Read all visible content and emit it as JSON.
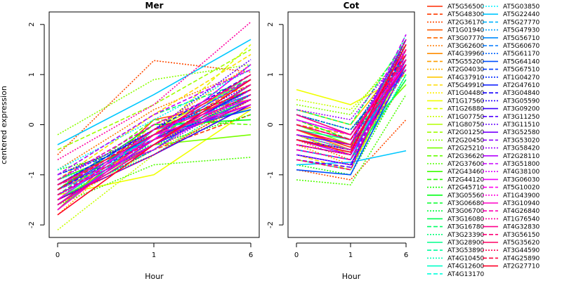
{
  "chart_data": {
    "type": "line",
    "ylabel": "centered expression",
    "xlabel": "Hour",
    "x_ticks": [
      "0",
      "1",
      "6"
    ],
    "y_ticks": [
      -2,
      -1,
      0,
      1,
      2
    ],
    "ylim": [
      -2.25,
      2.25
    ],
    "panels": [
      {
        "title": "Mer"
      },
      {
        "title": "Cot"
      }
    ],
    "legend_position": "right",
    "series": [
      {
        "name": "AT5G56500",
        "color": "#ff2a00",
        "dash": "solid",
        "mer": [
          -1.6,
          -0.2,
          0.7
        ],
        "cot": [
          -0.1,
          -0.45,
          1.4
        ]
      },
      {
        "name": "AT5G48300",
        "color": "#ff3a00",
        "dash": "dashed",
        "mer": [
          -1.2,
          -0.5,
          0.2
        ],
        "cot": [
          0.1,
          -0.3,
          1.2
        ]
      },
      {
        "name": "AT2G36170",
        "color": "#ff4a00",
        "dash": "dotted",
        "mer": [
          -0.6,
          1.28,
          1.05
        ],
        "cot": [
          -0.9,
          -1.1,
          0.1
        ]
      },
      {
        "name": "AT1G01940",
        "color": "#ff5a00",
        "dash": "solid",
        "mer": [
          -1.7,
          0.1,
          0.5
        ],
        "cot": [
          -0.2,
          -0.6,
          1.3
        ]
      },
      {
        "name": "AT3G07770",
        "color": "#ff6a00",
        "dash": "dashed",
        "mer": [
          -1.4,
          -0.3,
          0.9
        ],
        "cot": [
          0.2,
          -0.1,
          1.1
        ]
      },
      {
        "name": "AT3G62600",
        "color": "#ff7a00",
        "dash": "dotted",
        "mer": [
          -0.9,
          0.3,
          1.1
        ],
        "cot": [
          -0.3,
          -0.7,
          1.5
        ]
      },
      {
        "name": "AT4G39960",
        "color": "#ff8c00",
        "dash": "solid",
        "mer": [
          -1.2,
          -0.3,
          0.35
        ],
        "cot": [
          -0.1,
          -0.5,
          1.6
        ]
      },
      {
        "name": "AT5G55200",
        "color": "#ff9f00",
        "dash": "dashed",
        "mer": [
          -1.5,
          0.0,
          0.8
        ],
        "cot": [
          0.0,
          -0.2,
          1.3
        ]
      },
      {
        "name": "AT2G04030",
        "color": "#ffb400",
        "dash": "dotted",
        "mer": [
          -1.8,
          -0.1,
          1.2
        ],
        "cot": [
          -0.4,
          -0.8,
          0.9
        ]
      },
      {
        "name": "AT4G37910",
        "color": "#ffc800",
        "dash": "solid",
        "mer": [
          -1.3,
          -0.4,
          0.6
        ],
        "cot": [
          0.3,
          0.0,
          1.4
        ]
      },
      {
        "name": "AT5G49910",
        "color": "#ffdc00",
        "dash": "dashed",
        "mer": [
          -1.1,
          0.2,
          1.4
        ],
        "cot": [
          -0.6,
          -0.9,
          1.2
        ]
      },
      {
        "name": "AT1G04480",
        "color": "#fff000",
        "dash": "dotted",
        "mer": [
          -1.6,
          -0.5,
          0.4
        ],
        "cot": [
          0.1,
          -0.3,
          1.5
        ]
      },
      {
        "name": "AT1G17560",
        "color": "#f0ff00",
        "dash": "solid",
        "mer": [
          -1.4,
          -1.0,
          0.3
        ],
        "cot": [
          0.7,
          0.4,
          1.0
        ]
      },
      {
        "name": "AT1G26880",
        "color": "#dcff00",
        "dash": "dashed",
        "mer": [
          -1.0,
          -0.2,
          1.6
        ],
        "cot": [
          -0.2,
          -0.6,
          1.7
        ]
      },
      {
        "name": "AT1G07750",
        "color": "#c8ff00",
        "dash": "dotted",
        "mer": [
          -2.1,
          -0.6,
          0.5
        ],
        "cot": [
          0.5,
          0.3,
          1.4
        ]
      },
      {
        "name": "AT1G80750",
        "color": "#b4ff00",
        "dash": "solid",
        "mer": [
          -1.2,
          -0.1,
          0.9
        ],
        "cot": [
          -0.7,
          -0.9,
          1.3
        ]
      },
      {
        "name": "AT2G01250",
        "color": "#a0ff00",
        "dash": "dashed",
        "mer": [
          -0.5,
          0.4,
          1.5
        ],
        "cot": [
          -0.3,
          -0.5,
          1.1
        ]
      },
      {
        "name": "AT2G20450",
        "color": "#8cff00",
        "dash": "dotted",
        "mer": [
          -0.2,
          0.9,
          1.2
        ],
        "cot": [
          0.4,
          0.2,
          1.6
        ]
      },
      {
        "name": "AT2G25210",
        "color": "#78ff00",
        "dash": "solid",
        "mer": [
          -1.5,
          -0.4,
          -0.2
        ],
        "cot": [
          0.0,
          -0.4,
          0.8
        ]
      },
      {
        "name": "AT2G36620",
        "color": "#64ff00",
        "dash": "dashed",
        "mer": [
          -1.3,
          0.1,
          0.0
        ],
        "cot": [
          -0.5,
          -0.7,
          1.2
        ]
      },
      {
        "name": "AT2G37600",
        "color": "#50ff00",
        "dash": "dotted",
        "mer": [
          -1.6,
          -0.8,
          -0.65
        ],
        "cot": [
          -1.1,
          -1.2,
          0.6
        ]
      },
      {
        "name": "AT2G43460",
        "color": "#3cff00",
        "dash": "solid",
        "mer": [
          -1.1,
          -0.3,
          0.6
        ],
        "cot": [
          -0.4,
          -0.6,
          1.3
        ]
      },
      {
        "name": "AT2G44120",
        "color": "#28ff00",
        "dash": "dashed",
        "mer": [
          -1.4,
          -0.1,
          0.7
        ],
        "cot": [
          0.2,
          -0.2,
          1.5
        ]
      },
      {
        "name": "AT2G45710",
        "color": "#14ff00",
        "dash": "dotted",
        "mer": [
          -0.9,
          -0.4,
          0.2
        ],
        "cot": [
          -0.8,
          -1.0,
          1.0
        ]
      },
      {
        "name": "AT3G05560",
        "color": "#00ff14",
        "dash": "solid",
        "mer": [
          -1.3,
          0.0,
          0.1
        ],
        "cot": [
          -0.3,
          -0.5,
          1.4
        ]
      },
      {
        "name": "AT3G06680",
        "color": "#00ff28",
        "dash": "dashed",
        "mer": [
          -1.5,
          -0.5,
          0.8
        ],
        "cot": [
          0.1,
          -0.3,
          1.2
        ]
      },
      {
        "name": "AT3G06700",
        "color": "#00ff3c",
        "dash": "dotted",
        "mer": [
          -1.2,
          -0.2,
          0.4
        ],
        "cot": [
          -0.2,
          -0.4,
          1.6
        ]
      },
      {
        "name": "AT3G16080",
        "color": "#00ff50",
        "dash": "solid",
        "mer": [
          -1.6,
          -0.3,
          0.5
        ],
        "cot": [
          -0.5,
          -0.7,
          0.9
        ]
      },
      {
        "name": "AT3G16780",
        "color": "#00ff64",
        "dash": "dashed",
        "mer": [
          -1.0,
          0.2,
          0.9
        ],
        "cot": [
          0.3,
          0.0,
          1.7
        ]
      },
      {
        "name": "AT3G23390",
        "color": "#00ff78",
        "dash": "dotted",
        "mer": [
          -1.4,
          -0.6,
          0.6
        ],
        "cot": [
          -0.6,
          -0.8,
          1.1
        ]
      },
      {
        "name": "AT3G28900",
        "color": "#00ff8c",
        "dash": "solid",
        "mer": [
          -1.7,
          -0.1,
          0.3
        ],
        "cot": [
          -0.1,
          -0.3,
          1.5
        ]
      },
      {
        "name": "AT3G53890",
        "color": "#00ffa0",
        "dash": "dashed",
        "mer": [
          -1.2,
          -0.3,
          1.0
        ],
        "cot": [
          0.2,
          -0.1,
          1.3
        ]
      },
      {
        "name": "AT4G10450",
        "color": "#00ffb4",
        "dash": "dotted",
        "mer": [
          -1.1,
          -0.4,
          0.7
        ],
        "cot": [
          -0.4,
          -0.6,
          1.8
        ]
      },
      {
        "name": "AT4G12600",
        "color": "#00ffc8",
        "dash": "solid",
        "mer": [
          -1.5,
          -0.2,
          0.4
        ],
        "cot": [
          -0.2,
          -0.5,
          1.2
        ]
      },
      {
        "name": "AT4G13170",
        "color": "#00ffdc",
        "dash": "dashed",
        "mer": [
          -1.3,
          -0.5,
          0.8
        ],
        "cot": [
          0.0,
          -0.3,
          1.4
        ]
      },
      {
        "name": "AT5G03850",
        "color": "#00f0ff",
        "dash": "dotted",
        "mer": [
          -0.9,
          0.1,
          1.1
        ],
        "cot": [
          -0.7,
          -0.9,
          1.0
        ]
      },
      {
        "name": "AT5G22440",
        "color": "#00c8ff",
        "dash": "solid",
        "mer": [
          -0.4,
          0.6,
          1.7
        ],
        "cot": [
          -0.8,
          -0.75,
          -0.52
        ]
      },
      {
        "name": "AT5G27770",
        "color": "#00b4ff",
        "dash": "dashed",
        "mer": [
          -1.4,
          -0.2,
          0.9
        ],
        "cot": [
          -0.3,
          -0.5,
          1.6
        ]
      },
      {
        "name": "AT5G47930",
        "color": "#00a0ff",
        "dash": "dotted",
        "mer": [
          -1.6,
          -0.4,
          0.5
        ],
        "cot": [
          0.1,
          -0.2,
          1.3
        ]
      },
      {
        "name": "AT5G56710",
        "color": "#008cff",
        "dash": "solid",
        "mer": [
          -1.2,
          -0.1,
          0.6
        ],
        "cot": [
          -0.5,
          -0.7,
          1.5
        ]
      },
      {
        "name": "AT5G60670",
        "color": "#0078ff",
        "dash": "dashed",
        "mer": [
          -1.0,
          -0.3,
          1.2
        ],
        "cot": [
          -0.2,
          -0.4,
          1.1
        ]
      },
      {
        "name": "AT5G61170",
        "color": "#0064ff",
        "dash": "dotted",
        "mer": [
          -1.5,
          -0.5,
          0.8
        ],
        "cot": [
          0.0,
          -0.3,
          1.4
        ]
      },
      {
        "name": "AT5G64140",
        "color": "#0050ff",
        "dash": "solid",
        "mer": [
          -1.3,
          -0.2,
          0.3
        ],
        "cot": [
          -0.9,
          -1.0,
          1.2
        ]
      },
      {
        "name": "AT5G67510",
        "color": "#003cff",
        "dash": "dashed",
        "mer": [
          -1.1,
          0.0,
          0.9
        ],
        "cot": [
          -0.4,
          -0.6,
          1.7
        ]
      },
      {
        "name": "AT1G04270",
        "color": "#0028ff",
        "dash": "dotted",
        "mer": [
          -1.4,
          -0.4,
          0.6
        ],
        "cot": [
          0.2,
          -0.1,
          1.2
        ]
      },
      {
        "name": "AT2G47610",
        "color": "#0014ff",
        "dash": "solid",
        "mer": [
          -1.6,
          -0.3,
          0.7
        ],
        "cot": [
          -0.6,
          -0.8,
          1.3
        ]
      },
      {
        "name": "AT3G04840",
        "color": "#1400ff",
        "dash": "dashed",
        "mer": [
          -1.2,
          -0.1,
          1.0
        ],
        "cot": [
          -0.3,
          -0.5,
          1.5
        ]
      },
      {
        "name": "AT3G05590",
        "color": "#2800ff",
        "dash": "dotted",
        "mer": [
          -1.0,
          -0.2,
          0.8
        ],
        "cot": [
          0.1,
          -0.2,
          1.6
        ]
      },
      {
        "name": "AT3G09200",
        "color": "#3c00ff",
        "dash": "solid",
        "mer": [
          -1.5,
          -0.6,
          0.4
        ],
        "cot": [
          -0.4,
          -0.6,
          1.2
        ]
      },
      {
        "name": "AT3G11250",
        "color": "#5000ff",
        "dash": "dashed",
        "mer": [
          -1.3,
          -0.3,
          0.7
        ],
        "cot": [
          -0.7,
          -0.85,
          1.4
        ]
      },
      {
        "name": "AT3G11510",
        "color": "#6400ff",
        "dash": "dotted",
        "mer": [
          -1.1,
          -0.1,
          1.3
        ],
        "cot": [
          0.0,
          -0.3,
          1.1
        ]
      },
      {
        "name": "AT3G52580",
        "color": "#7800ff",
        "dash": "solid",
        "mer": [
          -1.4,
          -0.4,
          0.5
        ],
        "cot": [
          -0.2,
          -0.4,
          1.7
        ]
      },
      {
        "name": "AT3G53020",
        "color": "#8c00ff",
        "dash": "dashed",
        "mer": [
          -1.7,
          -0.2,
          0.9
        ],
        "cot": [
          -0.5,
          -0.7,
          1.3
        ]
      },
      {
        "name": "AT3G58420",
        "color": "#a000ff",
        "dash": "dotted",
        "mer": [
          -1.2,
          -0.5,
          0.6
        ],
        "cot": [
          0.3,
          0.1,
          1.5
        ]
      },
      {
        "name": "AT2G28110",
        "color": "#b400ff",
        "dash": "solid",
        "mer": [
          -1.6,
          -0.3,
          0.4
        ],
        "cot": [
          -0.3,
          -0.6,
          1.2
        ]
      },
      {
        "name": "AT3G51800",
        "color": "#c800ff",
        "dash": "dashed",
        "mer": [
          -1.0,
          0.2,
          1.1
        ],
        "cot": [
          -0.1,
          -0.4,
          1.8
        ]
      },
      {
        "name": "AT4G38100",
        "color": "#dc00ff",
        "dash": "dotted",
        "mer": [
          -1.4,
          -0.4,
          0.8
        ],
        "cot": [
          -0.6,
          -0.8,
          1.4
        ]
      },
      {
        "name": "AT3G06030",
        "color": "#f000ff",
        "dash": "solid",
        "mer": [
          -1.5,
          -0.1,
          0.5
        ],
        "cot": [
          0.1,
          -0.2,
          1.2
        ]
      },
      {
        "name": "AT5G10020",
        "color": "#ff00f0",
        "dash": "dashed",
        "mer": [
          -1.2,
          -0.3,
          1.2
        ],
        "cot": [
          -0.4,
          -0.6,
          1.6
        ]
      },
      {
        "name": "AT1G43900",
        "color": "#ff00dc",
        "dash": "dotted",
        "mer": [
          -1.3,
          -0.5,
          0.7
        ],
        "cot": [
          -0.2,
          -0.5,
          1.3
        ]
      },
      {
        "name": "AT3G10940",
        "color": "#ff00c8",
        "dash": "solid",
        "mer": [
          -1.7,
          -0.2,
          0.4
        ],
        "cot": [
          0.0,
          -0.3,
          1.5
        ]
      },
      {
        "name": "AT4G26840",
        "color": "#ff00b4",
        "dash": "dashed",
        "mer": [
          -1.1,
          0.0,
          0.9
        ],
        "cot": [
          -0.5,
          -0.7,
          1.1
        ]
      },
      {
        "name": "AT1G76540",
        "color": "#ff00a0",
        "dash": "dotted",
        "mer": [
          -0.7,
          0.4,
          2.05
        ],
        "cot": [
          -0.3,
          -0.5,
          1.4
        ]
      },
      {
        "name": "AT4G32830",
        "color": "#ff008c",
        "dash": "solid",
        "mer": [
          -1.6,
          -0.4,
          0.8
        ],
        "cot": [
          0.2,
          -0.2,
          1.3
        ]
      },
      {
        "name": "AT3G56150",
        "color": "#ff0078",
        "dash": "dashed",
        "mer": [
          -1.4,
          -0.3,
          0.6
        ],
        "cot": [
          -0.7,
          -0.9,
          1.5
        ]
      },
      {
        "name": "AT5G35620",
        "color": "#ff0064",
        "dash": "solid",
        "mer": [
          -1.2,
          -0.2,
          1.0
        ],
        "cot": [
          -0.1,
          -0.4,
          1.2
        ]
      },
      {
        "name": "AT3G44590",
        "color": "#ff0050",
        "dash": "dotted",
        "mer": [
          -1.5,
          -0.6,
          0.5
        ],
        "cot": [
          -0.4,
          -0.6,
          1.7
        ]
      },
      {
        "name": "AT4G25890",
        "color": "#ff003c",
        "dash": "dashed",
        "mer": [
          -1.3,
          -0.1,
          0.7
        ],
        "cot": [
          0.0,
          -0.3,
          1.4
        ]
      },
      {
        "name": "AT2G27710",
        "color": "#ff0028",
        "dash": "solid",
        "mer": [
          -1.8,
          -0.4,
          0.9
        ],
        "cot": [
          -0.3,
          -0.55,
          1.6
        ]
      }
    ]
  }
}
